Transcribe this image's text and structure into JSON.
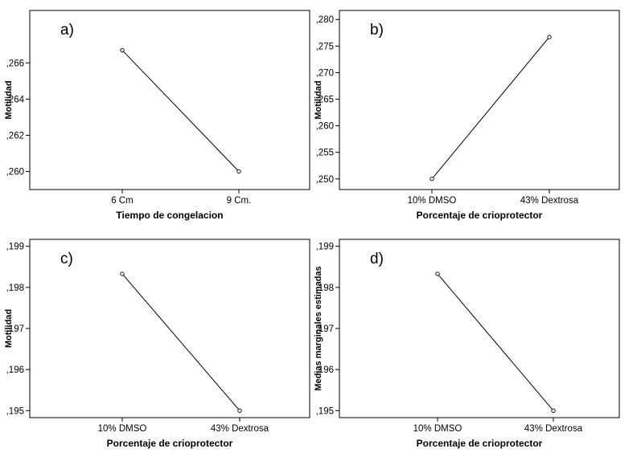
{
  "chart_data": [
    {
      "type": "line",
      "panel_label": "a)",
      "xlabel": "Tiempo de congelacion",
      "ylabel": "Motilidad",
      "categories": [
        "6 Cm",
        "9 Cm."
      ],
      "values": [
        0.2667,
        0.26
      ],
      "yticks": [
        0.26,
        0.262,
        0.264,
        0.266
      ],
      "ytick_labels": [
        ",260",
        ",262",
        ",264",
        ",266"
      ],
      "ylim": [
        0.259,
        0.2689
      ],
      "grid": false,
      "line_color": "#000000"
    },
    {
      "type": "line",
      "panel_label": "b)",
      "xlabel": "Porcentaje de crioprotector",
      "ylabel": "Motilidad",
      "categories": [
        "10% DMSO",
        "43% Dextrosa"
      ],
      "values": [
        0.25,
        0.2767
      ],
      "yticks": [
        0.25,
        0.255,
        0.26,
        0.265,
        0.27,
        0.275,
        0.28
      ],
      "ytick_labels": [
        ",250",
        ",255",
        ",260",
        ",265",
        ",270",
        ",275",
        ",280"
      ],
      "ylim": [
        0.248,
        0.2817
      ],
      "grid": false,
      "line_color": "#000000"
    },
    {
      "type": "line",
      "panel_label": "c)",
      "xlabel": "Porcentaje de crioprotector",
      "ylabel": "Motilidad",
      "categories": [
        "10% DMSO",
        "43% Dextrosa"
      ],
      "values": [
        0.19833,
        0.195
      ],
      "yticks": [
        0.195,
        0.196,
        0.197,
        0.198,
        0.199
      ],
      "ytick_labels": [
        ",195",
        ",196",
        ",197",
        ",198",
        ",199"
      ],
      "ylim": [
        0.19483,
        0.19917
      ],
      "grid": false,
      "line_color": "#000000"
    },
    {
      "type": "line",
      "panel_label": "d)",
      "xlabel": "Porcentaje de crioprotector",
      "ylabel": "Medias marginales estimadas",
      "categories": [
        "10% DMSO",
        "43% Dextrosa"
      ],
      "values": [
        0.19833,
        0.195
      ],
      "yticks": [
        0.195,
        0.196,
        0.197,
        0.198,
        0.199
      ],
      "ytick_labels": [
        ",195",
        ",196",
        ",197",
        ",198",
        ",199"
      ],
      "ylim": [
        0.19483,
        0.19917
      ],
      "grid": false,
      "line_color": "#000000"
    }
  ]
}
